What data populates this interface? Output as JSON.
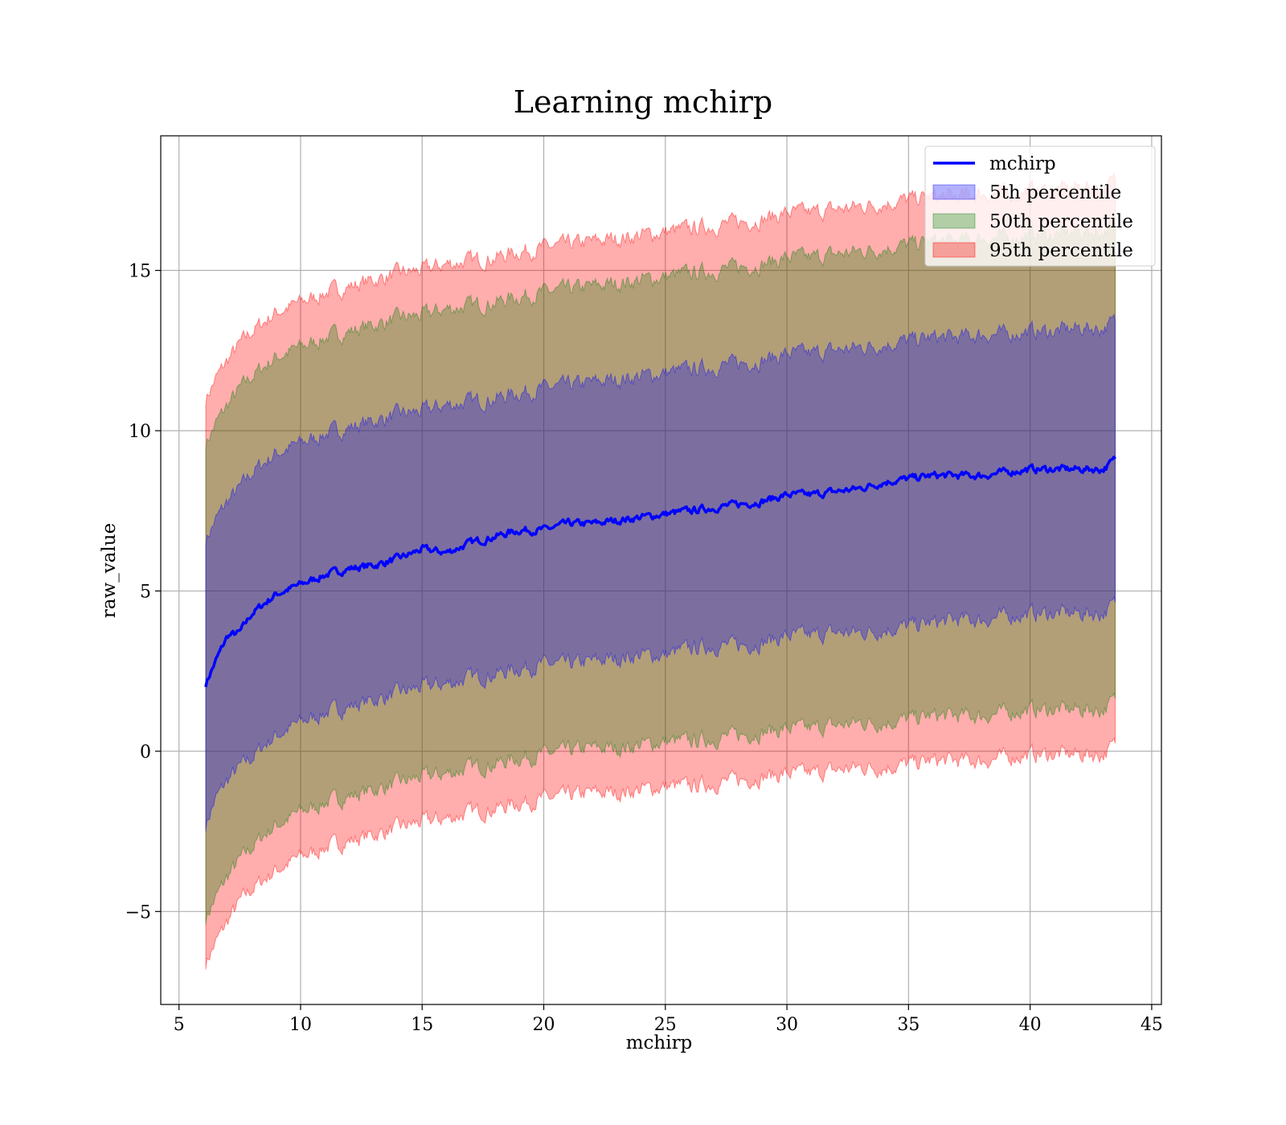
{
  "chart_data": {
    "type": "line",
    "title": "Learning mchirp",
    "xlabel": "mchirp",
    "ylabel": "raw_value",
    "xlim": [
      4.25,
      45.4
    ],
    "ylim": [
      -7.9,
      19.2
    ],
    "x_ticks": [
      5,
      10,
      15,
      20,
      25,
      30,
      35,
      40,
      45
    ],
    "y_ticks": [
      -5,
      0,
      5,
      10,
      15
    ],
    "y_tick_labels": [
      "−5",
      "0",
      "5",
      "10",
      "15"
    ],
    "grid": true,
    "legend_position": "top-right",
    "x": [
      6.1,
      6.5,
      7.0,
      7.5,
      8.0,
      8.5,
      9.0,
      10,
      11,
      12,
      13,
      14,
      15,
      16,
      17,
      18,
      19,
      20,
      21,
      22,
      23,
      24,
      25,
      26,
      27,
      28,
      29,
      30,
      31,
      32,
      33,
      34,
      35,
      36,
      37,
      38,
      39,
      40,
      41,
      42,
      43,
      43.5
    ],
    "series": [
      {
        "name": "mchirp",
        "kind": "line",
        "color": "#0000ff",
        "values": [
          2.1,
          2.8,
          3.6,
          3.7,
          4.3,
          4.6,
          4.9,
          5.2,
          5.5,
          5.7,
          5.8,
          6.0,
          6.3,
          6.2,
          6.5,
          6.7,
          6.9,
          6.9,
          7.1,
          7.1,
          7.2,
          7.3,
          7.4,
          7.5,
          7.6,
          7.7,
          7.8,
          8.0,
          8.0,
          8.1,
          8.2,
          8.4,
          8.5,
          8.6,
          8.6,
          8.6,
          8.7,
          8.8,
          8.8,
          8.8,
          8.8,
          9.1
        ]
      },
      {
        "name": "5th percentile",
        "kind": "band",
        "color": "#0000ff",
        "opacity": 0.3,
        "lower": [
          -2.3,
          -1.5,
          -0.9,
          -0.5,
          -0.2,
          0.2,
          0.5,
          0.9,
          1.2,
          1.4,
          1.6,
          1.8,
          2.0,
          2.1,
          2.3,
          2.4,
          2.6,
          2.7,
          2.7,
          2.8,
          2.9,
          3.0,
          3.0,
          3.2,
          3.3,
          3.3,
          3.4,
          3.6,
          3.6,
          3.7,
          3.7,
          3.8,
          3.9,
          4.0,
          4.1,
          4.1,
          4.2,
          4.3,
          4.3,
          4.3,
          4.3,
          4.6
        ],
        "upper": [
          6.6,
          7.2,
          7.8,
          8.2,
          8.7,
          9.0,
          9.3,
          9.6,
          9.9,
          10.1,
          10.3,
          10.5,
          10.6,
          10.8,
          10.9,
          11.0,
          11.2,
          11.3,
          11.4,
          11.5,
          11.6,
          11.7,
          11.8,
          11.9,
          12.0,
          12.1,
          12.2,
          12.4,
          12.4,
          12.5,
          12.6,
          12.7,
          12.8,
          12.9,
          12.9,
          13.0,
          13.0,
          13.1,
          13.1,
          13.2,
          13.2,
          13.4
        ]
      },
      {
        "name": "50th percentile",
        "kind": "band",
        "color": "#008000",
        "opacity": 0.3,
        "lower": [
          -5.2,
          -4.6,
          -3.9,
          -3.4,
          -3.0,
          -2.6,
          -2.3,
          -1.9,
          -1.6,
          -1.4,
          -1.2,
          -1.0,
          -0.8,
          -0.7,
          -0.5,
          -0.4,
          -0.2,
          -0.1,
          0.0,
          0.1,
          0.1,
          0.2,
          0.3,
          0.3,
          0.4,
          0.5,
          0.6,
          0.7,
          0.7,
          0.8,
          0.9,
          0.9,
          1.0,
          1.1,
          1.1,
          1.1,
          1.2,
          1.3,
          1.3,
          1.3,
          1.3,
          1.6
        ],
        "upper": [
          9.6,
          10.2,
          10.8,
          11.3,
          11.7,
          12.0,
          12.3,
          12.6,
          12.9,
          13.1,
          13.3,
          13.5,
          13.6,
          13.8,
          13.9,
          14.0,
          14.2,
          14.3,
          14.4,
          14.5,
          14.6,
          14.7,
          14.8,
          14.9,
          15.0,
          15.1,
          15.2,
          15.4,
          15.4,
          15.5,
          15.6,
          15.7,
          15.8,
          15.9,
          15.9,
          16.0,
          16.0,
          16.1,
          16.1,
          16.2,
          16.2,
          16.4
        ]
      },
      {
        "name": "95th percentile",
        "kind": "band",
        "color": "#ff0000",
        "opacity": 0.32,
        "lower": [
          -6.6,
          -6.0,
          -5.3,
          -4.7,
          -4.3,
          -4.0,
          -3.7,
          -3.3,
          -3.0,
          -2.8,
          -2.6,
          -2.4,
          -2.2,
          -2.1,
          -1.9,
          -1.8,
          -1.6,
          -1.5,
          -1.4,
          -1.3,
          -1.3,
          -1.2,
          -1.1,
          -1.1,
          -1.0,
          -0.9,
          -0.8,
          -0.7,
          -0.7,
          -0.6,
          -0.5,
          -0.5,
          -0.4,
          -0.3,
          -0.3,
          -0.3,
          -0.2,
          -0.1,
          -0.1,
          -0.1,
          -0.1,
          0.2
        ],
        "upper": [
          11.0,
          11.6,
          12.2,
          12.7,
          13.1,
          13.4,
          13.7,
          14.0,
          14.3,
          14.5,
          14.7,
          14.9,
          15.0,
          15.2,
          15.3,
          15.4,
          15.6,
          15.7,
          15.8,
          15.9,
          16.0,
          16.1,
          16.2,
          16.3,
          16.4,
          16.5,
          16.6,
          16.8,
          16.8,
          16.9,
          17.0,
          17.1,
          17.2,
          17.3,
          17.3,
          17.4,
          17.4,
          17.5,
          17.5,
          17.6,
          17.6,
          17.8
        ]
      }
    ]
  }
}
